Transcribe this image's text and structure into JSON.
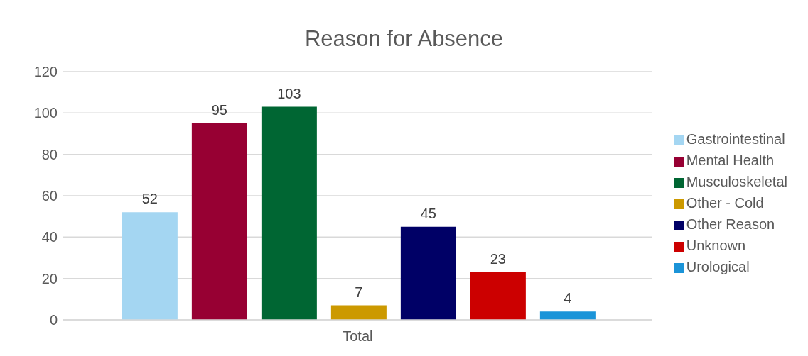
{
  "chart_data": {
    "type": "bar",
    "title": "Reason for Absence",
    "categories": [
      "Total"
    ],
    "series": [
      {
        "name": "Gastrointestinal",
        "color": "#a4d6f2",
        "values": [
          52
        ]
      },
      {
        "name": "Mental Health",
        "color": "#970033",
        "values": [
          95
        ]
      },
      {
        "name": "Musculoskeletal",
        "color": "#006633",
        "values": [
          103
        ]
      },
      {
        "name": "Other - Cold",
        "color": "#cc9900",
        "values": [
          7
        ]
      },
      {
        "name": "Other Reason",
        "color": "#000066",
        "values": [
          45
        ]
      },
      {
        "name": "Unknown",
        "color": "#cc0000",
        "values": [
          23
        ]
      },
      {
        "name": "Urological",
        "color": "#1b94d8",
        "values": [
          4
        ]
      }
    ],
    "ylim": [
      0,
      120
    ],
    "yticks": [
      0,
      20,
      40,
      60,
      80,
      100,
      120
    ],
    "grid": "y",
    "legend": "right",
    "data_labels": true
  }
}
